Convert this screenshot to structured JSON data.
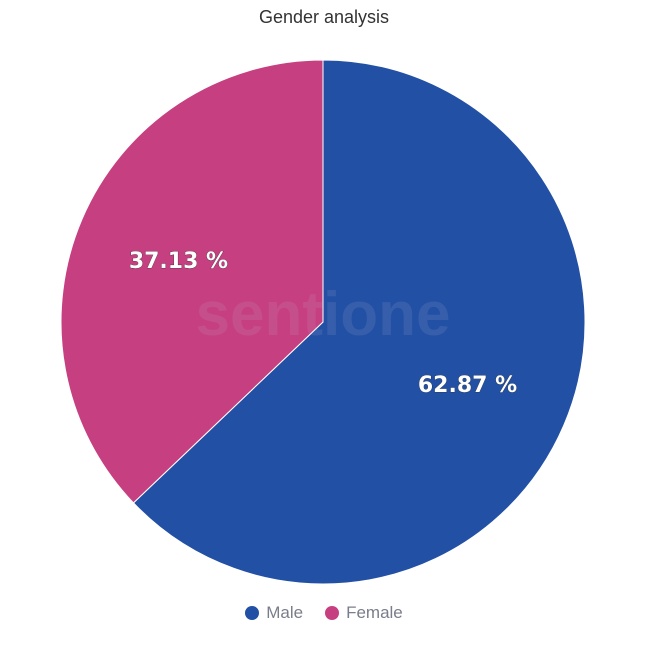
{
  "chart_data": {
    "type": "pie",
    "title": "Gender analysis",
    "categories": [
      "Male",
      "Female"
    ],
    "values": [
      62.87,
      37.13
    ],
    "colors": [
      "#2250a4",
      "#c63f80"
    ],
    "data_labels": [
      "62.87 %",
      "37.13 %"
    ],
    "legend": {
      "placement": "bottom",
      "entries": [
        "Male",
        "Female"
      ]
    }
  },
  "watermark": "sentione"
}
